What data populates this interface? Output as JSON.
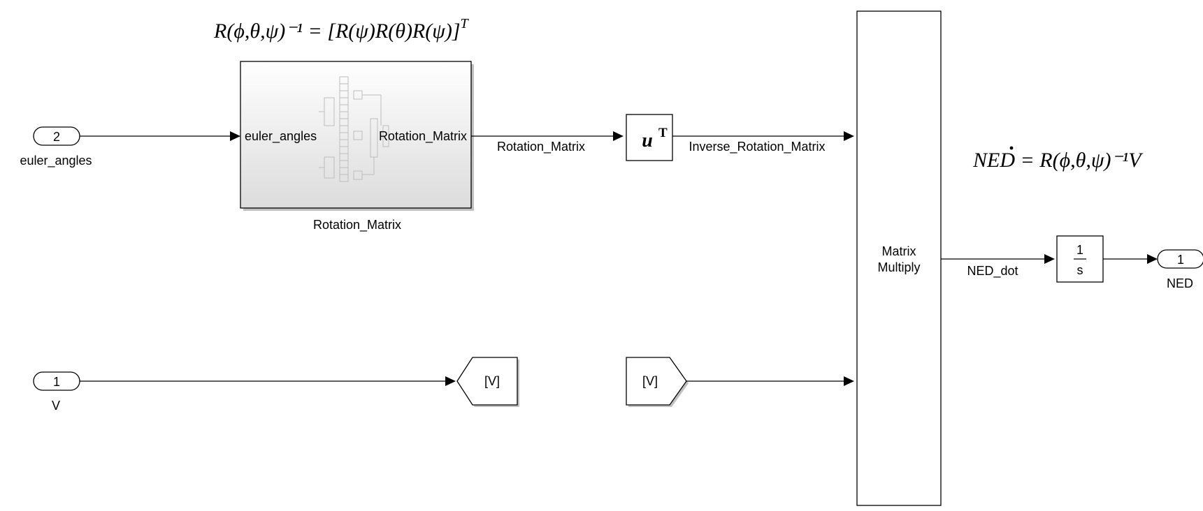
{
  "equations": {
    "rotation_inverse": "R(ϕ,θ,ψ)⁻¹ = [R(ψ)R(θ)R(ψ)]",
    "rotation_inverse_sup": "T",
    "ned_dot_lhs": "NE",
    "ned_dot_d": "D",
    "ned_dot_rhs": " = R(ϕ,θ,ψ)⁻¹V"
  },
  "inports": {
    "euler": {
      "number": "2",
      "label": "euler_angles"
    },
    "v": {
      "number": "1",
      "label": "V"
    }
  },
  "outport": {
    "number": "1",
    "label": "NED"
  },
  "subsystem": {
    "label": "Rotation_Matrix",
    "in_port": "euler_angles",
    "out_port": "Rotation_Matrix"
  },
  "transpose": {
    "base": "u",
    "sup": "T"
  },
  "matrix_multiply": {
    "line1": "Matrix",
    "line2": "Multiply"
  },
  "integrator": {
    "num": "1",
    "den": "s"
  },
  "goto": {
    "label": "[V]"
  },
  "from": {
    "label": "[V]"
  },
  "signals": {
    "rotation_matrix": "Rotation_Matrix",
    "inverse_rotation_matrix": "Inverse_Rotation_Matrix",
    "ned_dot": "NED_dot"
  },
  "colors": {
    "line": "#000000",
    "subsystem_top": "#ffffff",
    "subsystem_bottom": "#dcdcdc",
    "shadow": "#8c8c8c"
  }
}
